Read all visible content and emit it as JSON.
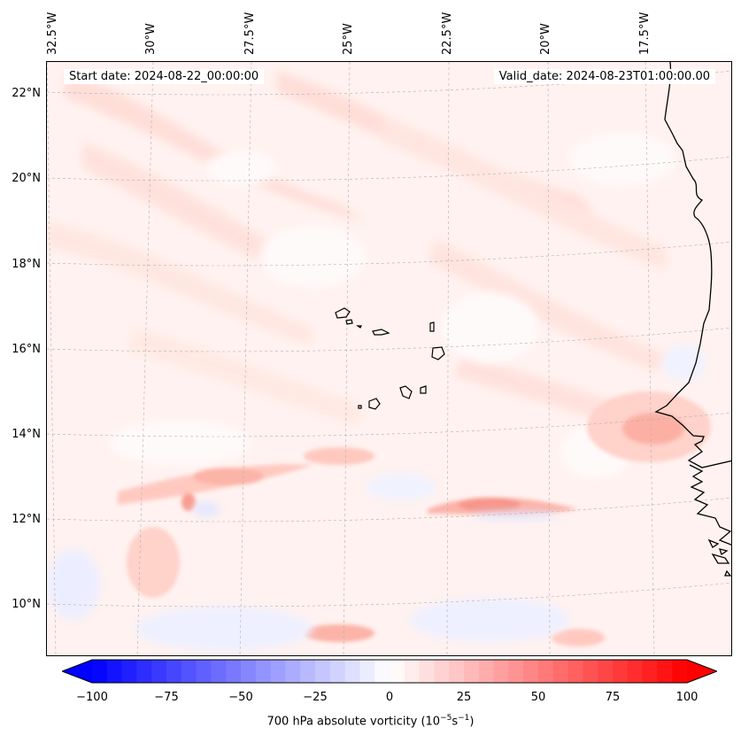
{
  "map": {
    "lon_labels": [
      "32.5°W",
      "30°W",
      "27.5°W",
      "25°W",
      "22.5°W",
      "20°W",
      "17.5°W"
    ],
    "lat_labels": [
      "22°N",
      "20°N",
      "18°N",
      "16°N",
      "14°N",
      "12°N",
      "10°N"
    ],
    "start_date": "Start date: 2024-08-22_00:00:00",
    "valid_date": "Valid_date: 2024-08-23T01:00:00.00",
    "colors": {
      "coast": "#000000",
      "grid": "#b0b0b0",
      "positive": "#ff0000",
      "negative": "#0000ff"
    }
  },
  "colorbar": {
    "ticks": [
      "−100",
      "−75",
      "−50",
      "−25",
      "0",
      "25",
      "50",
      "75",
      "100"
    ],
    "label": "700 hPa absolute vorticity (10",
    "label_exp1": "−5",
    "label_mid": "s",
    "label_exp2": "−1",
    "label_end": ")",
    "range": [
      -100,
      100
    ],
    "colormap": "bwr"
  }
}
